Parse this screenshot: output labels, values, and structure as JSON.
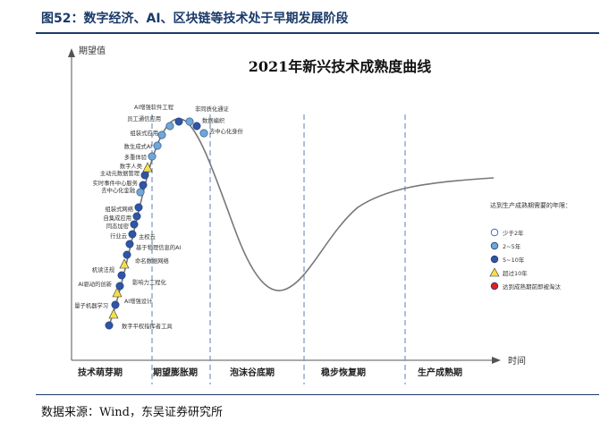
{
  "figure": {
    "title": "图52：数字经济、AI、区块链等技术处于早期发展阶段",
    "source": "数据来源：Wind，东吴证券研究所"
  },
  "chart_data": {
    "type": "line",
    "title": "2021年新兴技术成熟度曲线",
    "ylabel": "期望值",
    "xlabel": "时间",
    "phases": [
      "技术萌芽期",
      "期望膨胀期",
      "泡沫谷底期",
      "稳步恢复期",
      "生产成熟期"
    ],
    "legend": {
      "title": "达到生产成熟期需要的年限：",
      "items": [
        {
          "label": "少于2年",
          "color": "#ffffff"
        },
        {
          "label": "2~5年",
          "color": "#6fa8d6"
        },
        {
          "label": "5~10年",
          "color": "#2f55a4"
        },
        {
          "label": "超过10年",
          "color": "#f4e04d"
        },
        {
          "label": "达到成熟期前即被淘汰",
          "color": "#e02020"
        }
      ]
    },
    "points": [
      {
        "label": "数字平权指挥者工具",
        "cat": "5~10年"
      },
      {
        "label": "量子机器学习",
        "cat": "超过10年"
      },
      {
        "label": "AI增强设计",
        "cat": "5~10年"
      },
      {
        "label": "AI驱动的创新",
        "cat": "超过10年"
      },
      {
        "label": "影响力工程化",
        "cat": "5~10年"
      },
      {
        "label": "机读法规",
        "cat": "5~10年"
      },
      {
        "label": "命名数据网络",
        "cat": "超过10年"
      },
      {
        "label": "基于物理信息的AI",
        "cat": "5~10年"
      },
      {
        "label": "主权云",
        "cat": "5~10年"
      },
      {
        "label": "行业云",
        "cat": "5~10年"
      },
      {
        "label": "同态加密",
        "cat": "5~10年"
      },
      {
        "label": "自集成应用",
        "cat": "5~10年"
      },
      {
        "label": "组装式网络",
        "cat": "5~10年"
      },
      {
        "label": "去中心化金融",
        "cat": "2~5年"
      },
      {
        "label": "实时事件中心服务",
        "cat": "5~10年"
      },
      {
        "label": "主动元数据管理",
        "cat": "5~10年"
      },
      {
        "label": "数字人类",
        "cat": "超过10年"
      },
      {
        "label": "多重体验",
        "cat": "2~5年"
      },
      {
        "label": "数生成式AI",
        "cat": "2~5年"
      },
      {
        "label": "组装式应用",
        "cat": "2~5年"
      },
      {
        "label": "员工通信应用",
        "cat": "2~5年"
      },
      {
        "label": "AI增强软件工程",
        "cat": "5~10年"
      },
      {
        "label": "非同质化通证",
        "cat": "2~5年"
      },
      {
        "label": "数据编织",
        "cat": "5~10年"
      },
      {
        "label": "去中心化身份",
        "cat": "2~5年"
      }
    ]
  }
}
